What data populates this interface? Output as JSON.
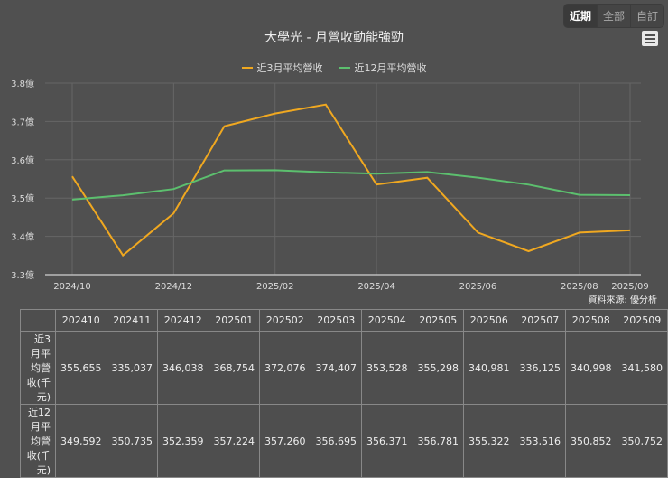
{
  "toolbar": {
    "buttons": [
      {
        "label": "近期",
        "active": true
      },
      {
        "label": "全部",
        "active": false
      },
      {
        "label": "自訂",
        "active": false
      }
    ],
    "menu_icon": "hamburger-menu-icon"
  },
  "title": "大學光 - 月營收動能強勁",
  "legend": [
    {
      "label": "近3月平均營收",
      "color": "#f0a820"
    },
    {
      "label": "近12月平均營收",
      "color": "#5cbf6e"
    }
  ],
  "source": "資料來源: 優分析",
  "chart_data": {
    "type": "line",
    "title": "大學光 - 月營收動能強勁",
    "xlabel": "",
    "ylabel": "",
    "ylim": [
      3.3,
      3.8
    ],
    "yticks": [
      "3.3億",
      "3.4億",
      "3.5億",
      "3.6億",
      "3.7億",
      "3.8億"
    ],
    "xticks": [
      "2024/10",
      "2024/12",
      "2025/02",
      "2025/04",
      "2025/06",
      "2025/08",
      "2025/09"
    ],
    "x": [
      "2024/10",
      "2024/11",
      "2024/12",
      "2025/01",
      "2025/02",
      "2025/03",
      "2025/04",
      "2025/05",
      "2025/06",
      "2025/07",
      "2025/08",
      "2025/09"
    ],
    "series": [
      {
        "name": "近3月平均營收",
        "color": "#f0a820",
        "values": [
          3.55655,
          3.35037,
          3.46038,
          3.68754,
          3.72076,
          3.74407,
          3.53528,
          3.55298,
          3.40981,
          3.36125,
          3.40998,
          3.4158
        ]
      },
      {
        "name": "近12月平均營收",
        "color": "#5cbf6e",
        "values": [
          3.49592,
          3.50735,
          3.52359,
          3.57224,
          3.5726,
          3.56695,
          3.56371,
          3.56781,
          3.55322,
          3.53516,
          3.50852,
          3.50752
        ]
      }
    ],
    "grid": true,
    "legend_position": "top"
  },
  "table": {
    "headers": [
      "",
      "202410",
      "202411",
      "202412",
      "202501",
      "202502",
      "202503",
      "202504",
      "202505",
      "202506",
      "202507",
      "202508",
      "202509"
    ],
    "rows": [
      {
        "label": "近3月平均營收(千元)",
        "values": [
          "355,655",
          "335,037",
          "346,038",
          "368,754",
          "372,076",
          "374,407",
          "353,528",
          "355,298",
          "340,981",
          "336,125",
          "340,998",
          "341,580"
        ]
      },
      {
        "label": "近12月平均營收(千元)",
        "values": [
          "349,592",
          "350,735",
          "352,359",
          "357,224",
          "357,260",
          "356,695",
          "356,371",
          "356,781",
          "355,322",
          "353,516",
          "350,852",
          "350,752"
        ]
      }
    ]
  }
}
